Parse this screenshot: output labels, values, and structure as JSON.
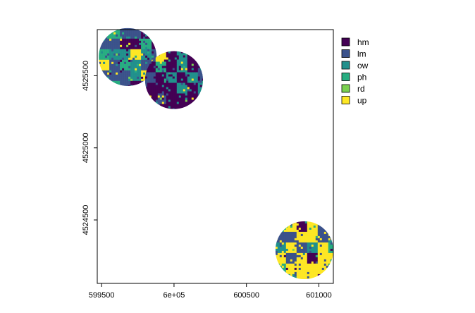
{
  "chart_data": {
    "type": "heatmap",
    "title": "",
    "xlabel": "",
    "ylabel": "",
    "xlim": [
      599470,
      601100
    ],
    "ylim": [
      4524060,
      4525820
    ],
    "x_ticks": [
      {
        "value": 599500,
        "label": "599500"
      },
      {
        "value": 600000,
        "label": "6e+05"
      },
      {
        "value": 600500,
        "label": "600500"
      },
      {
        "value": 601000,
        "label": "601000"
      }
    ],
    "y_ticks": [
      {
        "value": 4524500,
        "label": "4524500"
      },
      {
        "value": 4525000,
        "label": "4525000"
      },
      {
        "value": 4525500,
        "label": "4525500"
      }
    ],
    "legend": {
      "position": "right",
      "entries": [
        {
          "label": "hm",
          "color": "#440154"
        },
        {
          "label": "lm",
          "color": "#3B528B"
        },
        {
          "label": "ow",
          "color": "#21908C"
        },
        {
          "label": "ph",
          "color": "#27AD81"
        },
        {
          "label": "rd",
          "color": "#7AD151"
        },
        {
          "label": "up",
          "color": "#FDE725"
        }
      ]
    },
    "sites": [
      {
        "center": [
          599680,
          4525630
        ],
        "radius": 200,
        "composition": {
          "hm": 0.15,
          "lm": 0.4,
          "ow": 0.1,
          "ph": 0.15,
          "rd": 0.05,
          "up": 0.15
        }
      },
      {
        "center": [
          600000,
          4525470
        ],
        "radius": 200,
        "composition": {
          "hm": 0.5,
          "lm": 0.15,
          "ow": 0.15,
          "ph": 0.05,
          "rd": 0.02,
          "up": 0.13
        }
      },
      {
        "center": [
          600900,
          4524290
        ],
        "radius": 200,
        "composition": {
          "hm": 0.05,
          "lm": 0.45,
          "ow": 0.05,
          "ph": 0.08,
          "rd": 0.02,
          "up": 0.35
        }
      }
    ]
  }
}
